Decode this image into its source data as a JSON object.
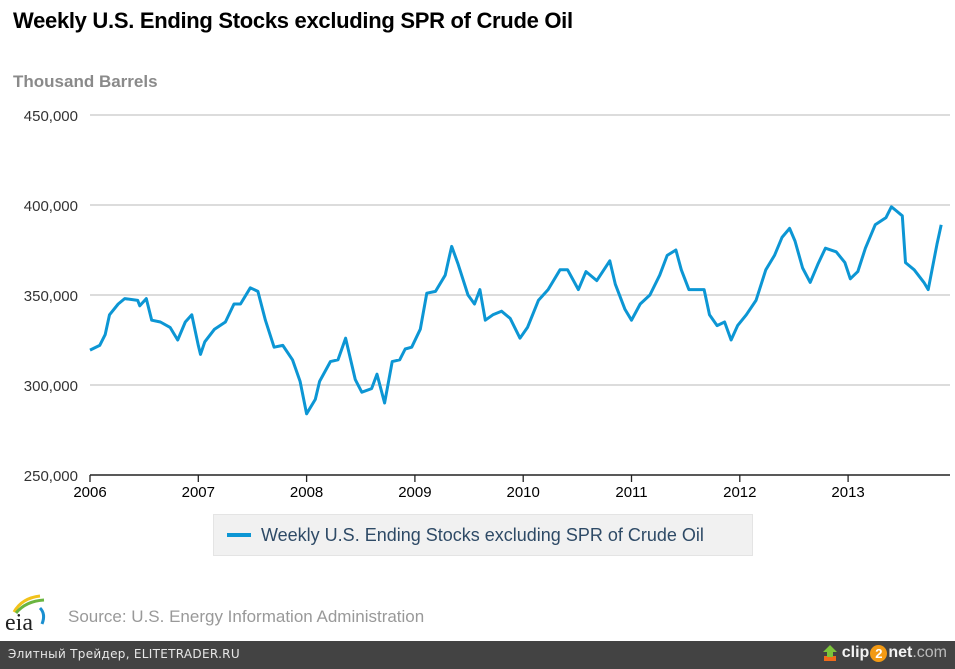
{
  "title": "Weekly U.S. Ending Stocks excluding SPR of Crude Oil",
  "units_label": "Thousand Barrels",
  "legend": {
    "label": "Weekly U.S. Ending Stocks excluding SPR of Crude Oil",
    "color": "#0c96d4"
  },
  "source": "Source: U.S. Energy Information Administration",
  "logo_text": "eia",
  "footer": {
    "left_text": "Элитный Трейдер, ELITETRADER.RU",
    "brand_a": "clip",
    "brand_two": "2",
    "brand_b": "net",
    "brand_c": ".com"
  },
  "chart_data": {
    "type": "line",
    "title": "Weekly U.S. Ending Stocks excluding SPR of Crude Oil",
    "xlabel": "",
    "ylabel": "Thousand Barrels",
    "xlim": [
      2006,
      2013.88
    ],
    "ylim": [
      250000,
      450000
    ],
    "yticks": [
      250000,
      300000,
      350000,
      400000,
      450000
    ],
    "ytick_labels": [
      "250,000",
      "300,000",
      "350,000",
      "400,000",
      "450,000"
    ],
    "xticks": [
      2006,
      2007,
      2008,
      2009,
      2010,
      2011,
      2012,
      2013
    ],
    "xtick_labels": [
      "2006",
      "2007",
      "2008",
      "2009",
      "2010",
      "2011",
      "2012",
      "2013"
    ],
    "grid": true,
    "legend_position": "bottom-center",
    "series": [
      {
        "name": "Weekly U.S. Ending Stocks excluding SPR of Crude Oil",
        "color": "#0c96d4",
        "x": [
          2006.0,
          2006.09,
          2006.14,
          2006.18,
          2006.26,
          2006.32,
          2006.44,
          2006.46,
          2006.52,
          2006.57,
          2006.65,
          2006.74,
          2006.81,
          2006.88,
          2006.94,
          2007.0,
          2007.02,
          2007.06,
          2007.15,
          2007.25,
          2007.33,
          2007.39,
          2007.48,
          2007.55,
          2007.62,
          2007.7,
          2007.78,
          2007.87,
          2007.94,
          2008.0,
          2008.08,
          2008.12,
          2008.22,
          2008.29,
          2008.36,
          2008.45,
          2008.51,
          2008.6,
          2008.65,
          2008.72,
          2008.79,
          2008.86,
          2008.91,
          2008.97,
          2009.05,
          2009.11,
          2009.19,
          2009.28,
          2009.32,
          2009.34,
          2009.4,
          2009.49,
          2009.55,
          2009.6,
          2009.65,
          2009.72,
          2009.8,
          2009.88,
          2009.97,
          2010.04,
          2010.14,
          2010.23,
          2010.34,
          2010.41,
          2010.51,
          2010.58,
          2010.68,
          2010.8,
          2010.85,
          2010.94,
          2011.0,
          2011.08,
          2011.17,
          2011.26,
          2011.33,
          2011.41,
          2011.46,
          2011.53,
          2011.61,
          2011.67,
          2011.72,
          2011.79,
          2011.86,
          2011.92,
          2011.98,
          2012.06,
          2012.15,
          2012.24,
          2012.32,
          2012.39,
          2012.46,
          2012.51,
          2012.58,
          2012.65,
          2012.72,
          2012.79,
          2012.89,
          2012.97,
          2013.02,
          2013.09,
          2013.16,
          2013.25,
          2013.35,
          2013.4,
          2013.44,
          2013.5,
          2013.53,
          2013.61,
          2013.7,
          2013.74,
          2013.82,
          2013.86
        ],
        "values": [
          319400,
          322000,
          328000,
          339000,
          345000,
          348000,
          347000,
          344000,
          348000,
          336000,
          335000,
          332000,
          325000,
          335000,
          339000,
          322000,
          317000,
          324000,
          331000,
          335000,
          345000,
          345000,
          354000,
          352000,
          336000,
          321000,
          322000,
          314000,
          302000,
          284000,
          292000,
          302000,
          313000,
          314000,
          326000,
          303000,
          296000,
          298000,
          306000,
          290000,
          313000,
          314000,
          320000,
          321000,
          331000,
          351000,
          352000,
          361000,
          372000,
          377000,
          367000,
          350000,
          345000,
          353000,
          336000,
          339000,
          341000,
          337000,
          326000,
          332000,
          347000,
          353000,
          364000,
          364000,
          353000,
          363000,
          358000,
          369000,
          356000,
          342000,
          336000,
          345000,
          350000,
          361000,
          372000,
          375000,
          364000,
          353000,
          353000,
          353000,
          339000,
          333000,
          335000,
          325000,
          333000,
          339000,
          347000,
          364000,
          372000,
          382000,
          387000,
          380000,
          365000,
          357000,
          367000,
          376000,
          374000,
          368000,
          359000,
          363000,
          376000,
          389000,
          393000,
          399000,
          397000,
          394000,
          368000,
          364000,
          357000,
          353000,
          378000,
          389000
        ]
      }
    ]
  }
}
